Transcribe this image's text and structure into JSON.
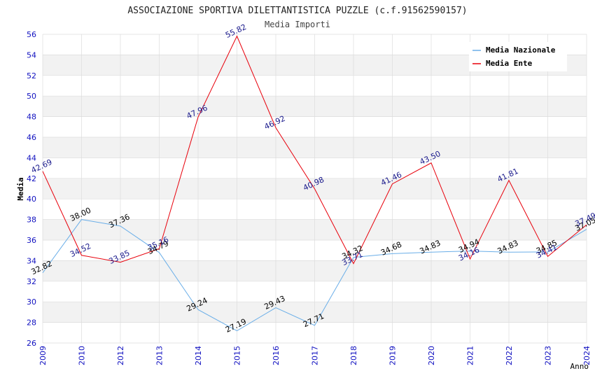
{
  "chart_data": {
    "type": "line",
    "title": "ASSOCIAZIONE SPORTIVA DILETTANTISTICA PUZZLE (c.f.91562590157)",
    "subtitle": "Media Importi",
    "xlabel": "Anno",
    "ylabel": "Media",
    "categories": [
      "2009",
      "2010",
      "2012",
      "2013",
      "2014",
      "2015",
      "2016",
      "2017",
      "2018",
      "2019",
      "2020",
      "2021",
      "2022",
      "2023",
      "2024"
    ],
    "ylim": [
      26,
      56
    ],
    "yticks": [
      26,
      28,
      30,
      32,
      34,
      36,
      38,
      40,
      42,
      44,
      46,
      48,
      50,
      52,
      54,
      56
    ],
    "grid": true,
    "legend_position": "top-right",
    "series": [
      {
        "name": "Media Nazionale",
        "color": "#6aaee8",
        "label_color": "#000000",
        "values": [
          32.82,
          38.0,
          37.36,
          34.79,
          29.24,
          27.19,
          29.43,
          27.71,
          34.32,
          34.68,
          34.83,
          34.94,
          34.83,
          34.85,
          37.05
        ],
        "labels": [
          "32.82",
          "38.00",
          "37.36",
          "34.79",
          "29.24",
          "27.19",
          "29.43",
          "27.71",
          "34.32",
          "34.68",
          "34.83",
          "34.94",
          "34.83",
          "34.85",
          "37.05"
        ]
      },
      {
        "name": "Media Ente",
        "color": "#e8000b",
        "label_color": "#1a1a8c",
        "values": [
          42.69,
          34.52,
          33.85,
          35.16,
          47.96,
          55.82,
          46.92,
          40.98,
          33.71,
          41.46,
          43.5,
          34.16,
          41.81,
          34.41,
          37.49
        ],
        "labels": [
          "42.69",
          "34.52",
          "33.85",
          "35.16",
          "47.96",
          "55.82",
          "46.92",
          "40.98",
          "33.71",
          "41.46",
          "43.50",
          "34.16",
          "41.81",
          "34.41",
          "37.49"
        ]
      }
    ]
  },
  "colors": {
    "axis_tick_text": "#1010c0",
    "band": "#f2f2f2",
    "grid": "#dddddd"
  }
}
